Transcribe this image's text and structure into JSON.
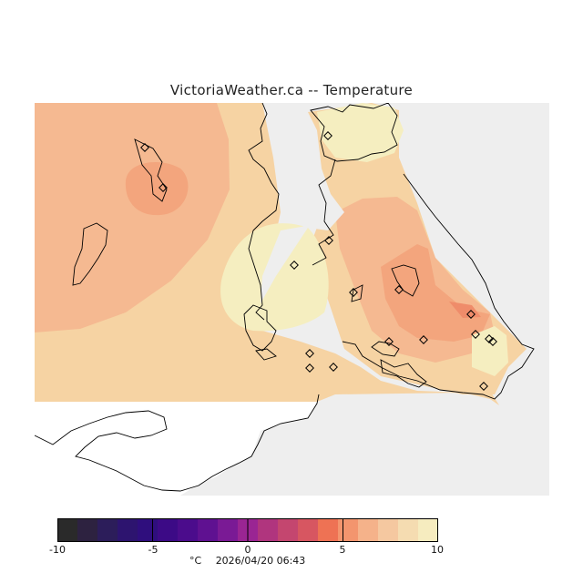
{
  "title": "VictoriaWeather.ca -- Temperature",
  "colors": {
    "map_background": "#eeeeee",
    "land_white": "#ffffff",
    "coast_line": "#000000",
    "station_marker": "#000000"
  },
  "contours": {
    "band_4_to_5": "#ef8c6a",
    "band_5_to_6": "#f3a57d",
    "band_6_to_7": "#f5b991",
    "band_7_to_8": "#f6d3a3",
    "band_8_to_9": "#f5eec0"
  },
  "colorbar": {
    "swatches": [
      "#2a2a2a",
      "#2d2240",
      "#2c1d5a",
      "#2d146f",
      "#2f0e7d",
      "#3c0a86",
      "#4b0c8c",
      "#5f1191",
      "#7a1a95",
      "#9a2593",
      "#b0357e",
      "#c4466f",
      "#d75661",
      "#ee7254",
      "#f3956e",
      "#f5b28a",
      "#f5c8a0",
      "#f5dcb1",
      "#f6ecbf"
    ],
    "ticks": [
      "-10",
      "-5",
      "0",
      "5",
      "10"
    ],
    "unit": "°C",
    "timestamp": "2026/04/20 06:43"
  }
}
